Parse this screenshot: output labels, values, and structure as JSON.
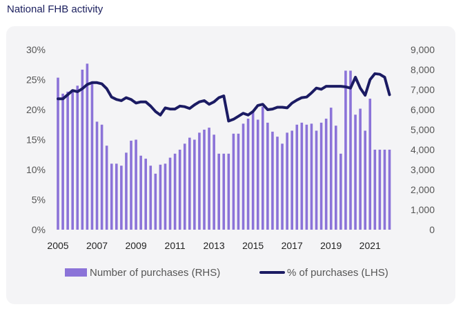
{
  "page": {
    "title": "National FHB activity"
  },
  "colors": {
    "bars": "#8b73d8",
    "line": "#1b1b63",
    "text": "#555555",
    "background": "#f4f4f6"
  },
  "chart_data": {
    "type": "bar+line",
    "title": "National FHB activity",
    "left_axis": {
      "label": "% of purchases (LHS)",
      "range": [
        0,
        30
      ],
      "ticks": [
        0,
        5,
        10,
        15,
        20,
        25,
        30
      ],
      "tick_labels": [
        "0%",
        "5%",
        "10%",
        "15%",
        "20%",
        "25%",
        "30%"
      ]
    },
    "right_axis": {
      "label": "Number of purchases (RHS)",
      "range": [
        0,
        9000
      ],
      "ticks": [
        0,
        1000,
        2000,
        3000,
        4000,
        5000,
        6000,
        7000,
        8000,
        9000
      ],
      "tick_labels": [
        "0",
        "1,000",
        "2,000",
        "3,000",
        "4,000",
        "5,000",
        "6,000",
        "7,000",
        "8,000",
        "9,000"
      ]
    },
    "x_axis": {
      "range": [
        2005,
        2022.3
      ],
      "ticks": [
        2005,
        2007,
        2009,
        2011,
        2013,
        2015,
        2017,
        2019,
        2021
      ],
      "tick_labels": [
        "2005",
        "2007",
        "2009",
        "2011",
        "2013",
        "2015",
        "2017",
        "2019",
        "2021"
      ]
    },
    "legend": {
      "position": "bottom",
      "items": [
        {
          "name": "Number of purchases (RHS)",
          "kind": "bar"
        },
        {
          "name": "% of purchases (LHS)",
          "kind": "line"
        }
      ]
    },
    "series": [
      {
        "name": "Number of purchases (RHS)",
        "type": "bar",
        "axis": "right",
        "x": [
          2005.0,
          2005.25,
          2005.5,
          2005.75,
          2006.0,
          2006.25,
          2006.5,
          2006.75,
          2007.0,
          2007.25,
          2007.5,
          2007.75,
          2008.0,
          2008.25,
          2008.5,
          2008.75,
          2009.0,
          2009.25,
          2009.5,
          2009.75,
          2010.0,
          2010.25,
          2010.5,
          2010.75,
          2011.0,
          2011.25,
          2011.5,
          2011.75,
          2012.0,
          2012.25,
          2012.5,
          2012.75,
          2013.0,
          2013.25,
          2013.5,
          2013.75,
          2014.0,
          2014.25,
          2014.5,
          2014.75,
          2015.0,
          2015.25,
          2015.5,
          2015.75,
          2016.0,
          2016.25,
          2016.5,
          2016.75,
          2017.0,
          2017.25,
          2017.5,
          2017.75,
          2018.0,
          2018.25,
          2018.5,
          2018.75,
          2019.0,
          2019.25,
          2019.5,
          2019.75,
          2020.0,
          2020.25,
          2020.5,
          2020.75,
          2021.0,
          2021.25,
          2021.5,
          2021.75,
          2022.0
        ],
        "values": [
          7600,
          6800,
          6900,
          7000,
          7200,
          8000,
          8300,
          7300,
          5400,
          5250,
          4200,
          3300,
          3300,
          3200,
          3850,
          4450,
          4500,
          3700,
          3550,
          3200,
          2800,
          3250,
          3300,
          3600,
          3800,
          4000,
          4300,
          4600,
          4500,
          4850,
          5000,
          5100,
          4750,
          3800,
          3800,
          3800,
          4800,
          4800,
          5300,
          5550,
          5950,
          5500,
          6150,
          5350,
          4900,
          4650,
          4300,
          4850,
          4950,
          5250,
          5350,
          5250,
          5300,
          4950,
          5350,
          5550,
          6100,
          5200,
          3800,
          7950,
          7950,
          5750,
          6050,
          4950,
          6550,
          4000,
          4000,
          4000,
          4000
        ]
      },
      {
        "name": "% of purchases (LHS)",
        "type": "line",
        "axis": "left",
        "x": [
          2005.0,
          2005.25,
          2005.5,
          2005.75,
          2006.0,
          2006.25,
          2006.5,
          2006.75,
          2007.0,
          2007.25,
          2007.5,
          2007.75,
          2008.0,
          2008.25,
          2008.5,
          2008.75,
          2009.0,
          2009.25,
          2009.5,
          2009.75,
          2010.0,
          2010.25,
          2010.5,
          2010.75,
          2011.0,
          2011.25,
          2011.5,
          2011.75,
          2012.0,
          2012.25,
          2012.5,
          2012.75,
          2013.0,
          2013.25,
          2013.5,
          2013.75,
          2014.0,
          2014.25,
          2014.5,
          2014.75,
          2015.0,
          2015.25,
          2015.5,
          2015.75,
          2016.0,
          2016.25,
          2016.5,
          2016.75,
          2017.0,
          2017.25,
          2017.5,
          2017.75,
          2018.0,
          2018.25,
          2018.5,
          2018.75,
          2019.0,
          2019.25,
          2019.5,
          2019.75,
          2020.0,
          2020.25,
          2020.5,
          2020.75,
          2021.0,
          2021.25,
          2021.5,
          2021.75,
          2022.0
        ],
        "values": [
          21.8,
          21.8,
          22.5,
          23.2,
          23.0,
          23.5,
          24.2,
          24.5,
          24.5,
          24.3,
          23.5,
          22.1,
          21.7,
          21.5,
          22.0,
          21.7,
          21.1,
          21.3,
          21.3,
          20.6,
          19.7,
          19.1,
          20.3,
          20.1,
          20.1,
          20.6,
          20.5,
          20.2,
          20.8,
          21.3,
          21.5,
          20.9,
          21.3,
          22.0,
          22.3,
          18.1,
          18.4,
          18.9,
          19.4,
          19.1,
          19.7,
          20.7,
          20.9,
          20.0,
          20.1,
          20.4,
          20.4,
          20.3,
          21.1,
          21.6,
          22.0,
          22.1,
          22.8,
          23.6,
          23.4,
          23.9,
          23.9,
          23.9,
          23.9,
          23.8,
          23.6,
          25.4,
          23.6,
          22.4,
          25.0,
          26.0,
          25.9,
          25.4,
          22.5
        ]
      }
    ]
  }
}
